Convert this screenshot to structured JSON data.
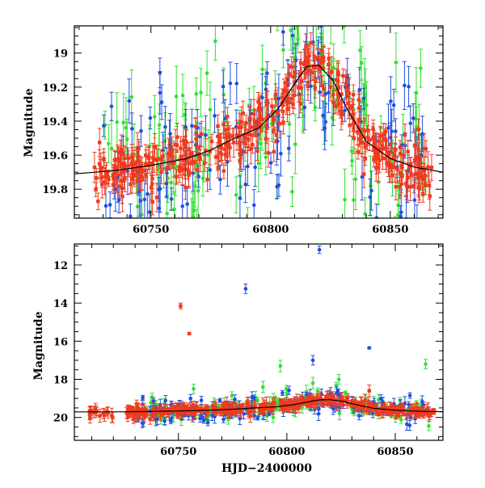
{
  "colors": {
    "blue": "#1f4fe0",
    "green": "#33e033",
    "red": "#f03a1e",
    "model": "#000000"
  },
  "chart_data": [
    {
      "type": "scatter",
      "panel": "top",
      "title": "",
      "xlabel": "",
      "ylabel": "Magnitude",
      "xlim": [
        60718,
        60872
      ],
      "ylim": [
        19.97,
        18.84
      ],
      "y_inverted": true,
      "grid": false,
      "legend": "none",
      "xticks": [
        60750,
        60800,
        60850
      ],
      "yticks": [
        19.0,
        19.2,
        19.4,
        19.6,
        19.8
      ],
      "ytick_labels": [
        "19",
        "19.2",
        "19.4",
        "19.6",
        "19.8"
      ],
      "model_curve": {
        "x": [
          60718,
          60735,
          60750,
          60765,
          60775,
          60785,
          60795,
          60803,
          60810,
          60815,
          60820,
          60826,
          60832,
          60840,
          60850,
          60860,
          60872
        ],
        "y": [
          19.71,
          19.69,
          19.66,
          19.62,
          19.57,
          19.5,
          19.44,
          19.33,
          19.18,
          19.08,
          19.07,
          19.16,
          19.33,
          19.52,
          19.62,
          19.67,
          19.7
        ]
      },
      "series_profile": {
        "blue": {
          "x_range": [
            60730,
            60866
          ],
          "scatter": 0.22,
          "err": [
            0.06,
            0.15
          ]
        },
        "green": {
          "x_range": [
            60730,
            60866
          ],
          "scatter": 0.26,
          "err": [
            0.07,
            0.18
          ]
        },
        "red": {
          "x_range": [
            60726,
            60868
          ],
          "scatter": 0.09,
          "err": [
            0.04,
            0.09
          ]
        }
      }
    },
    {
      "type": "scatter",
      "panel": "bottom",
      "title": "",
      "xlabel": "HJD−2400000",
      "ylabel": "Magnitude",
      "xlim": [
        60702,
        60872
      ],
      "ylim": [
        21.2,
        10.9
      ],
      "y_inverted": true,
      "grid": false,
      "legend": "none",
      "xticks": [
        60750,
        60800,
        60850
      ],
      "yticks": [
        12,
        14,
        16,
        18,
        20
      ],
      "ytick_labels": [
        "12",
        "14",
        "16",
        "18",
        "20"
      ],
      "outliers": [
        {
          "series": "red",
          "x": 60751,
          "y": 14.15,
          "err": 0.15
        },
        {
          "series": "red",
          "x": 60755,
          "y": 15.6,
          "err": 0.05
        },
        {
          "series": "blue",
          "x": 60781,
          "y": 13.25,
          "err": 0.25
        },
        {
          "series": "blue",
          "x": 60815,
          "y": 11.2,
          "err": 0.2
        },
        {
          "series": "blue",
          "x": 60812,
          "y": 17.0,
          "err": 0.25
        },
        {
          "series": "blue",
          "x": 60838,
          "y": 16.35,
          "err": 0.05
        },
        {
          "series": "green",
          "x": 60757,
          "y": 18.5,
          "err": 0.25
        },
        {
          "series": "green",
          "x": 60789,
          "y": 18.4,
          "err": 0.3
        },
        {
          "series": "green",
          "x": 60797,
          "y": 17.3,
          "err": 0.3
        },
        {
          "series": "green",
          "x": 60812,
          "y": 18.2,
          "err": 0.3
        },
        {
          "series": "green",
          "x": 60824,
          "y": 18.0,
          "err": 0.25
        },
        {
          "series": "green",
          "x": 60864,
          "y": 17.2,
          "err": 0.25
        },
        {
          "series": "red",
          "x": 60838,
          "y": 18.6,
          "err": 0.3
        }
      ],
      "early_red": {
        "x_range": [
          60707,
          60720
        ],
        "y": 19.8,
        "scatter": 0.3
      }
    }
  ]
}
